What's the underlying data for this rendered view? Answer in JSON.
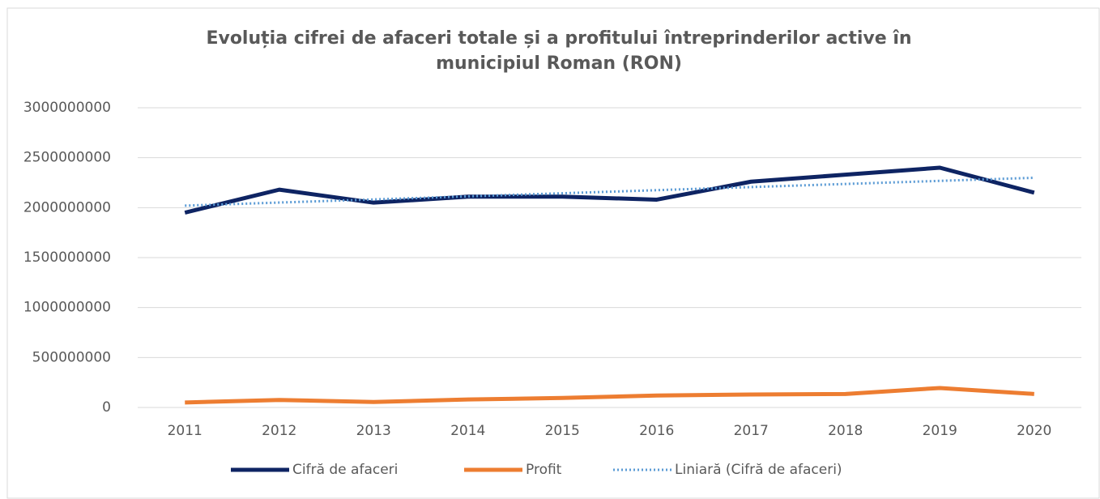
{
  "chart_data": {
    "type": "line",
    "title": "Evoluția cifrei de afaceri totale și a profitului întreprinderilor active în",
    "subtitle": "municipiul Roman (RON)",
    "categories": [
      "2011",
      "2012",
      "2013",
      "2014",
      "2015",
      "2016",
      "2017",
      "2018",
      "2019",
      "2020"
    ],
    "series": [
      {
        "name": "Cifră de afaceri",
        "color": "#0e2463",
        "style": "solid",
        "values": [
          1950000000,
          2180000000,
          2050000000,
          2110000000,
          2110000000,
          2080000000,
          2260000000,
          2330000000,
          2400000000,
          2150000000
        ]
      },
      {
        "name": "Profit",
        "color": "#ed7d31",
        "style": "solid",
        "values": [
          50000000,
          75000000,
          55000000,
          80000000,
          95000000,
          120000000,
          130000000,
          135000000,
          195000000,
          135000000
        ]
      },
      {
        "name": "Liniară (Cifră de afaceri)",
        "color": "#5b9bd5",
        "style": "dotted",
        "values": [
          2020000000,
          2051000000,
          2082000000,
          2113000000,
          2144000000,
          2175000000,
          2206000000,
          2237000000,
          2268000000,
          2299000000
        ]
      }
    ],
    "ylim": [
      0,
      3000000000
    ],
    "yticks": [
      0,
      500000000,
      1000000000,
      1500000000,
      2000000000,
      2500000000,
      3000000000
    ],
    "grid": true,
    "legend": "bottom"
  }
}
